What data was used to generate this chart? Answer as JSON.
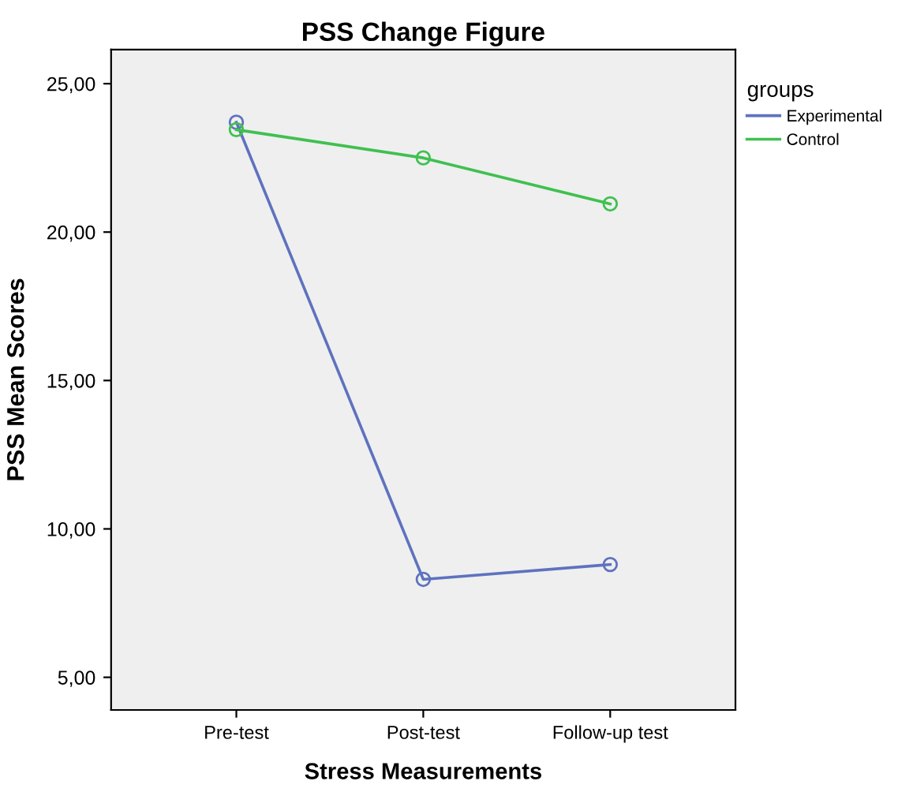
{
  "chart_data": {
    "type": "line",
    "title": "PSS Change Figure",
    "xlabel": "Stress Measurements",
    "ylabel": "PSS Mean Scores",
    "legend_title": "groups",
    "categories": [
      "Pre-test",
      "Post-test",
      "Follow-up test"
    ],
    "series": [
      {
        "name": "Experimental",
        "color": "#5f72bf",
        "values": [
          23.7,
          8.3,
          8.8
        ]
      },
      {
        "name": "Control",
        "color": "#40c050",
        "values": [
          23.45,
          22.5,
          20.95
        ]
      }
    ],
    "ylim": [
      3.9,
      26.15
    ],
    "yticks": [
      {
        "value": 5,
        "label": "5,00"
      },
      {
        "value": 10,
        "label": "10,00"
      },
      {
        "value": 15,
        "label": "15,00"
      },
      {
        "value": 20,
        "label": "20,00"
      },
      {
        "value": 25,
        "label": "25,00"
      }
    ],
    "marker": "circle",
    "line_style": "solid",
    "grid": false,
    "legend": "right"
  }
}
